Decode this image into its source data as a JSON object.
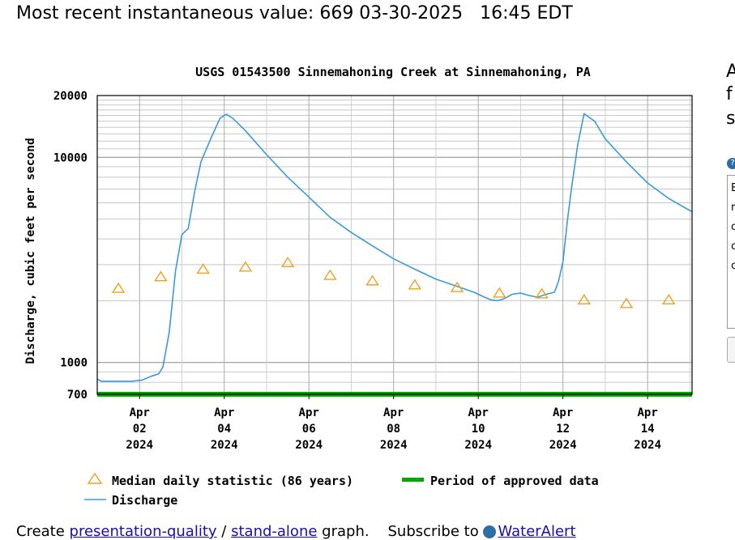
{
  "recent_value_text": "Most recent instantaneous value: 669 03-30-2025   16:45 EDT",
  "side_text": [
    "A",
    "f",
    "s"
  ],
  "side_box_lines": [
    "E",
    "r",
    "c",
    "c",
    "c"
  ],
  "footer": {
    "create": "Create",
    "presentation_link": "presentation-quality",
    "slash": "/",
    "standalone_link": "stand-alone",
    "graph": "graph.",
    "subscribe": "Subscribe to",
    "wateralert_link": "WaterAlert"
  },
  "chart_data": {
    "type": "line",
    "title": "USGS 01543500 Sinnemahoning Creek at Sinnemahoning, PA",
    "ylabel": "Discharge, cubic feet per second",
    "xlabel": "",
    "yscale": "log",
    "ylim": [
      700,
      20000
    ],
    "xlim_days": [
      0,
      14.05
    ],
    "x_start": "2024-04-01",
    "y_ticks": [
      {
        "value": 20000,
        "label": "20000"
      },
      {
        "value": 10000,
        "label": "10000"
      },
      {
        "value": 1000,
        "label": "1000"
      },
      {
        "value": 700,
        "label": "700"
      }
    ],
    "x_ticks": [
      {
        "day": 1,
        "month": "Apr",
        "date": "02",
        "year": "2024"
      },
      {
        "day": 3,
        "month": "Apr",
        "date": "04",
        "year": "2024"
      },
      {
        "day": 5,
        "month": "Apr",
        "date": "06",
        "year": "2024"
      },
      {
        "day": 7,
        "month": "Apr",
        "date": "08",
        "year": "2024"
      },
      {
        "day": 9,
        "month": "Apr",
        "date": "10",
        "year": "2024"
      },
      {
        "day": 11,
        "month": "Apr",
        "date": "12",
        "year": "2024"
      },
      {
        "day": 13,
        "month": "Apr",
        "date": "14",
        "year": "2024"
      }
    ],
    "series": [
      {
        "name": "Discharge",
        "color": "#3b9ad9",
        "x": [
          0,
          0.1,
          0.3,
          0.8,
          1.05,
          1.3,
          1.45,
          1.55,
          1.7,
          1.85,
          2.0,
          2.15,
          2.3,
          2.45,
          2.7,
          2.9,
          3.05,
          3.2,
          3.5,
          4.0,
          4.5,
          5.0,
          5.5,
          6.0,
          6.5,
          7.0,
          7.5,
          8.0,
          8.5,
          8.9,
          9.15,
          9.3,
          9.45,
          9.6,
          9.8,
          10.0,
          10.2,
          10.4,
          10.6,
          10.8,
          10.9,
          11.0,
          11.1,
          11.2,
          11.35,
          11.5,
          11.75,
          12.0,
          12.5,
          13.0,
          13.5,
          14.0,
          14.05
        ],
        "y": [
          830,
          810,
          810,
          810,
          820,
          860,
          880,
          950,
          1400,
          2800,
          4200,
          4500,
          6800,
          9500,
          12600,
          15500,
          16200,
          15500,
          13500,
          10300,
          8000,
          6400,
          5100,
          4300,
          3700,
          3200,
          2850,
          2550,
          2350,
          2200,
          2080,
          2020,
          2000,
          2040,
          2150,
          2180,
          2120,
          2080,
          2150,
          2200,
          2500,
          3100,
          4800,
          7000,
          11500,
          16300,
          15000,
          12300,
          9500,
          7500,
          6300,
          5500,
          5450
        ]
      },
      {
        "name": "Median daily statistic (86 years)",
        "color": "#f0a020",
        "marker": "triangle",
        "x": [
          0.5,
          1.5,
          2.5,
          3.5,
          4.5,
          5.5,
          6.5,
          7.5,
          8.5,
          9.5,
          10.5,
          11.5,
          12.5,
          13.5
        ],
        "y": [
          2300,
          2620,
          2850,
          2920,
          3070,
          2660,
          2500,
          2390,
          2320,
          2180,
          2160,
          2020,
          1940,
          2020
        ]
      },
      {
        "name": "Period of approved data",
        "color": "#00aa00",
        "value": 700
      }
    ],
    "legend": [
      {
        "symbol": "triangle",
        "label": "Median daily statistic (86 years)",
        "color": "#f0a020"
      },
      {
        "symbol": "bar",
        "label": "Period of approved data",
        "color": "#00aa00"
      },
      {
        "symbol": "line",
        "label": "Discharge",
        "color": "#3b9ad9"
      }
    ],
    "legend_position": "bottom",
    "grid": true
  }
}
